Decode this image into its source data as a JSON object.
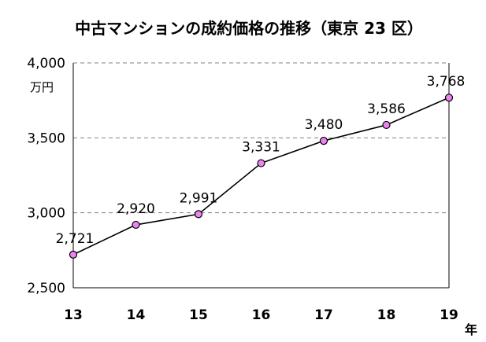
{
  "chart_data": {
    "type": "line",
    "title": "中古マンションの成約価格の推移（東京 23 区）",
    "ylabel": "万円",
    "xlabel": "年",
    "x": [
      "13",
      "14",
      "15",
      "16",
      "17",
      "18",
      "19"
    ],
    "series": [
      {
        "values": [
          2721,
          2920,
          2991,
          3331,
          3480,
          3586,
          3768
        ],
        "labels": [
          "2,721",
          "2,920",
          "2,991",
          "3,331",
          "3,480",
          "3,586",
          "3,768"
        ]
      }
    ],
    "ylim": [
      2500,
      4000
    ],
    "yticks": [
      2500,
      3000,
      3500,
      4000
    ],
    "ytick_labels": [
      "2,500",
      "3,000",
      "3,500",
      "4,000"
    ],
    "grid": "horizontal dashed",
    "line_color": "#000000",
    "marker_fill": "#ee82ee",
    "marker_stroke": "#000000",
    "grid_color": "#808080"
  }
}
